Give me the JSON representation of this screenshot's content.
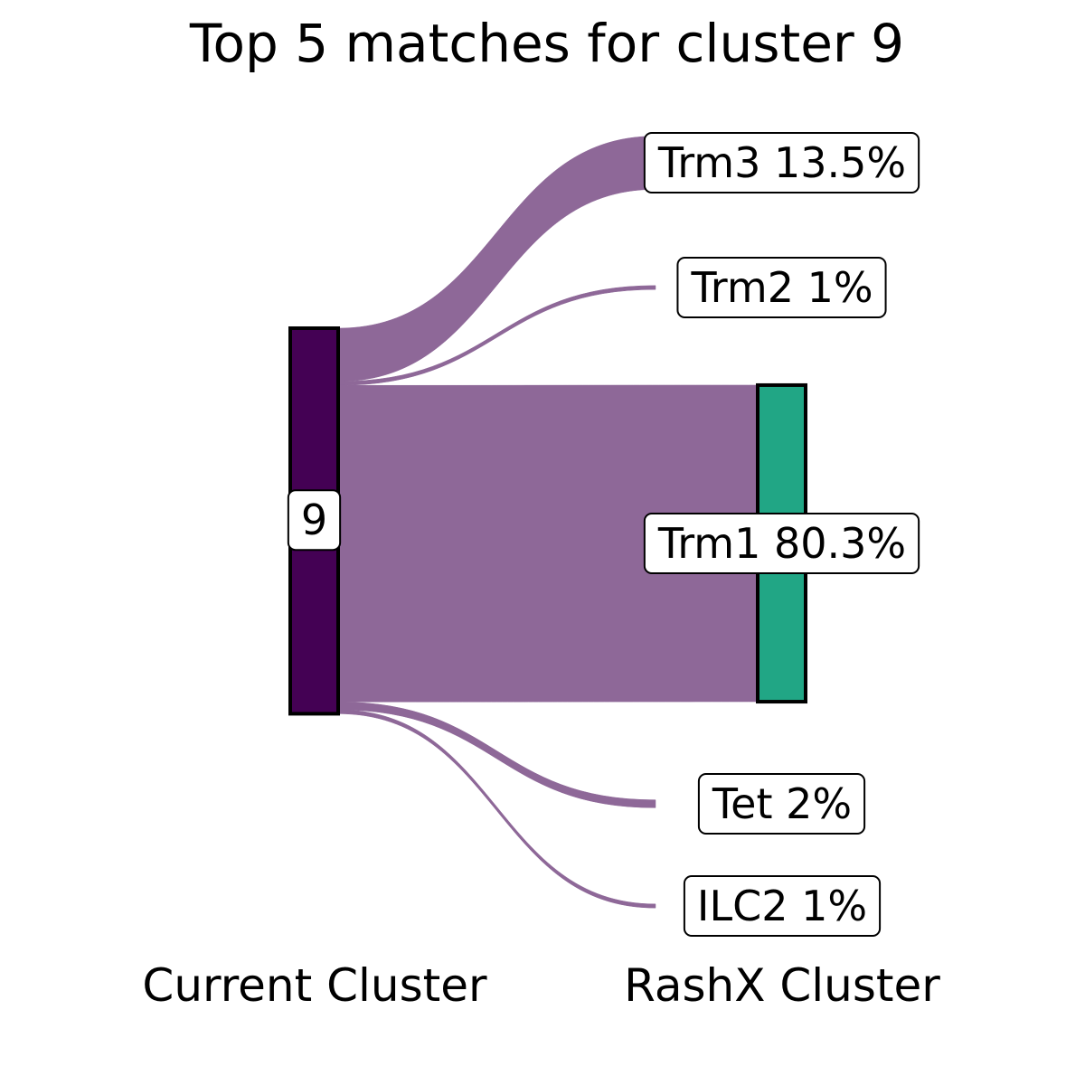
{
  "chart_data": {
    "type": "sankey",
    "title": "Top 5 matches for cluster 9",
    "source": {
      "label": "9",
      "color": "#440154"
    },
    "targets": [
      {
        "name": "Trm3",
        "percent": 13.5,
        "label": "Trm3 13.5%"
      },
      {
        "name": "Trm2",
        "percent": 1,
        "label": "Trm2 1%"
      },
      {
        "name": "Trm1",
        "percent": 80.3,
        "label": "Trm1 80.3%",
        "bar_color": "#21A685"
      },
      {
        "name": "Tet",
        "percent": 2,
        "label": "Tet 2%"
      },
      {
        "name": "ILC2",
        "percent": 1,
        "label": "ILC2 1%"
      }
    ],
    "flow_color": "#8E6898",
    "axis_labels": [
      "Current Cluster",
      "RashX Cluster"
    ]
  }
}
